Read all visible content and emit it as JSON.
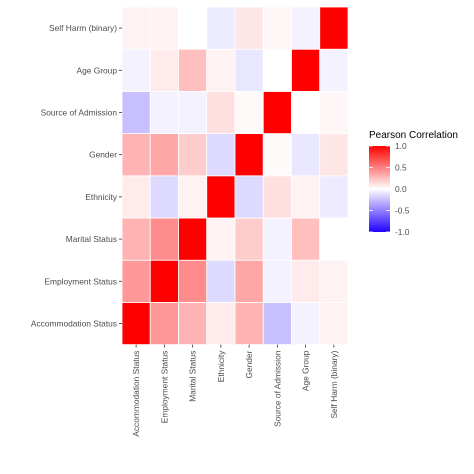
{
  "chart_data": {
    "type": "heatmap",
    "x_categories": [
      "Accommodation Status",
      "Employment Status",
      "Marital Status",
      "Ethnicity",
      "Gender",
      "Source of Admission",
      "Age Group",
      "Self Harm (binary)"
    ],
    "y_categories_bottom_to_top": [
      "Accommodation Status",
      "Employment Status",
      "Marital Status",
      "Ethnicity",
      "Gender",
      "Source of Admission",
      "Age Group",
      "Self Harm (binary)"
    ],
    "matrix": [
      [
        1.0,
        0.4,
        0.3,
        0.08,
        0.3,
        -0.25,
        -0.05,
        0.05
      ],
      [
        0.4,
        1.0,
        0.45,
        -0.15,
        0.35,
        -0.05,
        0.08,
        0.05
      ],
      [
        0.3,
        0.45,
        1.0,
        0.05,
        0.2,
        -0.05,
        0.25,
        0.0
      ],
      [
        0.08,
        -0.15,
        0.05,
        1.0,
        -0.15,
        0.12,
        0.05,
        -0.08
      ],
      [
        0.3,
        0.35,
        0.2,
        -0.15,
        1.0,
        0.02,
        -0.1,
        0.1
      ],
      [
        -0.25,
        -0.05,
        -0.05,
        0.12,
        0.02,
        1.0,
        0.0,
        0.03
      ],
      [
        -0.05,
        0.08,
        0.25,
        0.05,
        -0.1,
        0.0,
        1.0,
        -0.05
      ],
      [
        0.05,
        0.05,
        0.0,
        -0.08,
        0.1,
        0.03,
        -0.05,
        1.0
      ]
    ],
    "legend": {
      "title": "Pearson Correlation",
      "ticks": [
        "1.0",
        "0.5",
        "0.0",
        "-0.5",
        "-1.0"
      ],
      "tick_values": [
        1.0,
        0.5,
        0.0,
        -0.5,
        -1.0
      ],
      "range": [
        -1,
        1
      ],
      "colors": {
        "low": "#2200ff",
        "mid": "#ffffff",
        "high": "#ff0000"
      },
      "placement": "right"
    },
    "grid": false,
    "tile_border_color": "#ffffff"
  }
}
